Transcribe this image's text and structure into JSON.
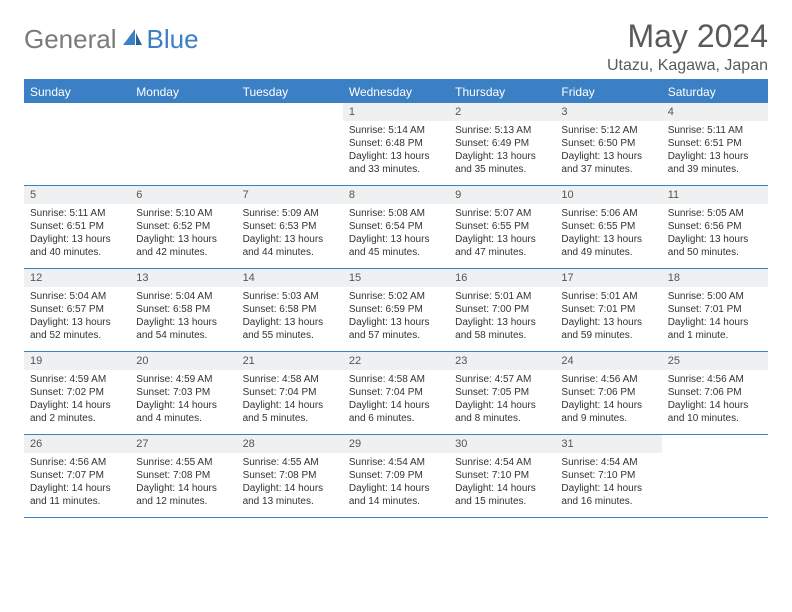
{
  "brand": {
    "part1": "General",
    "part2": "Blue"
  },
  "title": "May 2024",
  "location": "Utazu, Kagawa, Japan",
  "colors": {
    "accent": "#3b7fc4",
    "header_text": "#ffffff",
    "daynum_bg": "#eef0f2",
    "body_bg": "#ffffff",
    "text": "#333333",
    "muted": "#5a5a5a"
  },
  "day_headers": [
    "Sunday",
    "Monday",
    "Tuesday",
    "Wednesday",
    "Thursday",
    "Friday",
    "Saturday"
  ],
  "weeks": [
    [
      null,
      null,
      null,
      {
        "n": "1",
        "sr": "5:14 AM",
        "ss": "6:48 PM",
        "dl": "13 hours and 33 minutes."
      },
      {
        "n": "2",
        "sr": "5:13 AM",
        "ss": "6:49 PM",
        "dl": "13 hours and 35 minutes."
      },
      {
        "n": "3",
        "sr": "5:12 AM",
        "ss": "6:50 PM",
        "dl": "13 hours and 37 minutes."
      },
      {
        "n": "4",
        "sr": "5:11 AM",
        "ss": "6:51 PM",
        "dl": "13 hours and 39 minutes."
      }
    ],
    [
      {
        "n": "5",
        "sr": "5:11 AM",
        "ss": "6:51 PM",
        "dl": "13 hours and 40 minutes."
      },
      {
        "n": "6",
        "sr": "5:10 AM",
        "ss": "6:52 PM",
        "dl": "13 hours and 42 minutes."
      },
      {
        "n": "7",
        "sr": "5:09 AM",
        "ss": "6:53 PM",
        "dl": "13 hours and 44 minutes."
      },
      {
        "n": "8",
        "sr": "5:08 AM",
        "ss": "6:54 PM",
        "dl": "13 hours and 45 minutes."
      },
      {
        "n": "9",
        "sr": "5:07 AM",
        "ss": "6:55 PM",
        "dl": "13 hours and 47 minutes."
      },
      {
        "n": "10",
        "sr": "5:06 AM",
        "ss": "6:55 PM",
        "dl": "13 hours and 49 minutes."
      },
      {
        "n": "11",
        "sr": "5:05 AM",
        "ss": "6:56 PM",
        "dl": "13 hours and 50 minutes."
      }
    ],
    [
      {
        "n": "12",
        "sr": "5:04 AM",
        "ss": "6:57 PM",
        "dl": "13 hours and 52 minutes."
      },
      {
        "n": "13",
        "sr": "5:04 AM",
        "ss": "6:58 PM",
        "dl": "13 hours and 54 minutes."
      },
      {
        "n": "14",
        "sr": "5:03 AM",
        "ss": "6:58 PM",
        "dl": "13 hours and 55 minutes."
      },
      {
        "n": "15",
        "sr": "5:02 AM",
        "ss": "6:59 PM",
        "dl": "13 hours and 57 minutes."
      },
      {
        "n": "16",
        "sr": "5:01 AM",
        "ss": "7:00 PM",
        "dl": "13 hours and 58 minutes."
      },
      {
        "n": "17",
        "sr": "5:01 AM",
        "ss": "7:01 PM",
        "dl": "13 hours and 59 minutes."
      },
      {
        "n": "18",
        "sr": "5:00 AM",
        "ss": "7:01 PM",
        "dl": "14 hours and 1 minute."
      }
    ],
    [
      {
        "n": "19",
        "sr": "4:59 AM",
        "ss": "7:02 PM",
        "dl": "14 hours and 2 minutes."
      },
      {
        "n": "20",
        "sr": "4:59 AM",
        "ss": "7:03 PM",
        "dl": "14 hours and 4 minutes."
      },
      {
        "n": "21",
        "sr": "4:58 AM",
        "ss": "7:04 PM",
        "dl": "14 hours and 5 minutes."
      },
      {
        "n": "22",
        "sr": "4:58 AM",
        "ss": "7:04 PM",
        "dl": "14 hours and 6 minutes."
      },
      {
        "n": "23",
        "sr": "4:57 AM",
        "ss": "7:05 PM",
        "dl": "14 hours and 8 minutes."
      },
      {
        "n": "24",
        "sr": "4:56 AM",
        "ss": "7:06 PM",
        "dl": "14 hours and 9 minutes."
      },
      {
        "n": "25",
        "sr": "4:56 AM",
        "ss": "7:06 PM",
        "dl": "14 hours and 10 minutes."
      }
    ],
    [
      {
        "n": "26",
        "sr": "4:56 AM",
        "ss": "7:07 PM",
        "dl": "14 hours and 11 minutes."
      },
      {
        "n": "27",
        "sr": "4:55 AM",
        "ss": "7:08 PM",
        "dl": "14 hours and 12 minutes."
      },
      {
        "n": "28",
        "sr": "4:55 AM",
        "ss": "7:08 PM",
        "dl": "14 hours and 13 minutes."
      },
      {
        "n": "29",
        "sr": "4:54 AM",
        "ss": "7:09 PM",
        "dl": "14 hours and 14 minutes."
      },
      {
        "n": "30",
        "sr": "4:54 AM",
        "ss": "7:10 PM",
        "dl": "14 hours and 15 minutes."
      },
      {
        "n": "31",
        "sr": "4:54 AM",
        "ss": "7:10 PM",
        "dl": "14 hours and 16 minutes."
      },
      null
    ]
  ],
  "labels": {
    "sunrise": "Sunrise:",
    "sunset": "Sunset:",
    "daylight": "Daylight:"
  }
}
